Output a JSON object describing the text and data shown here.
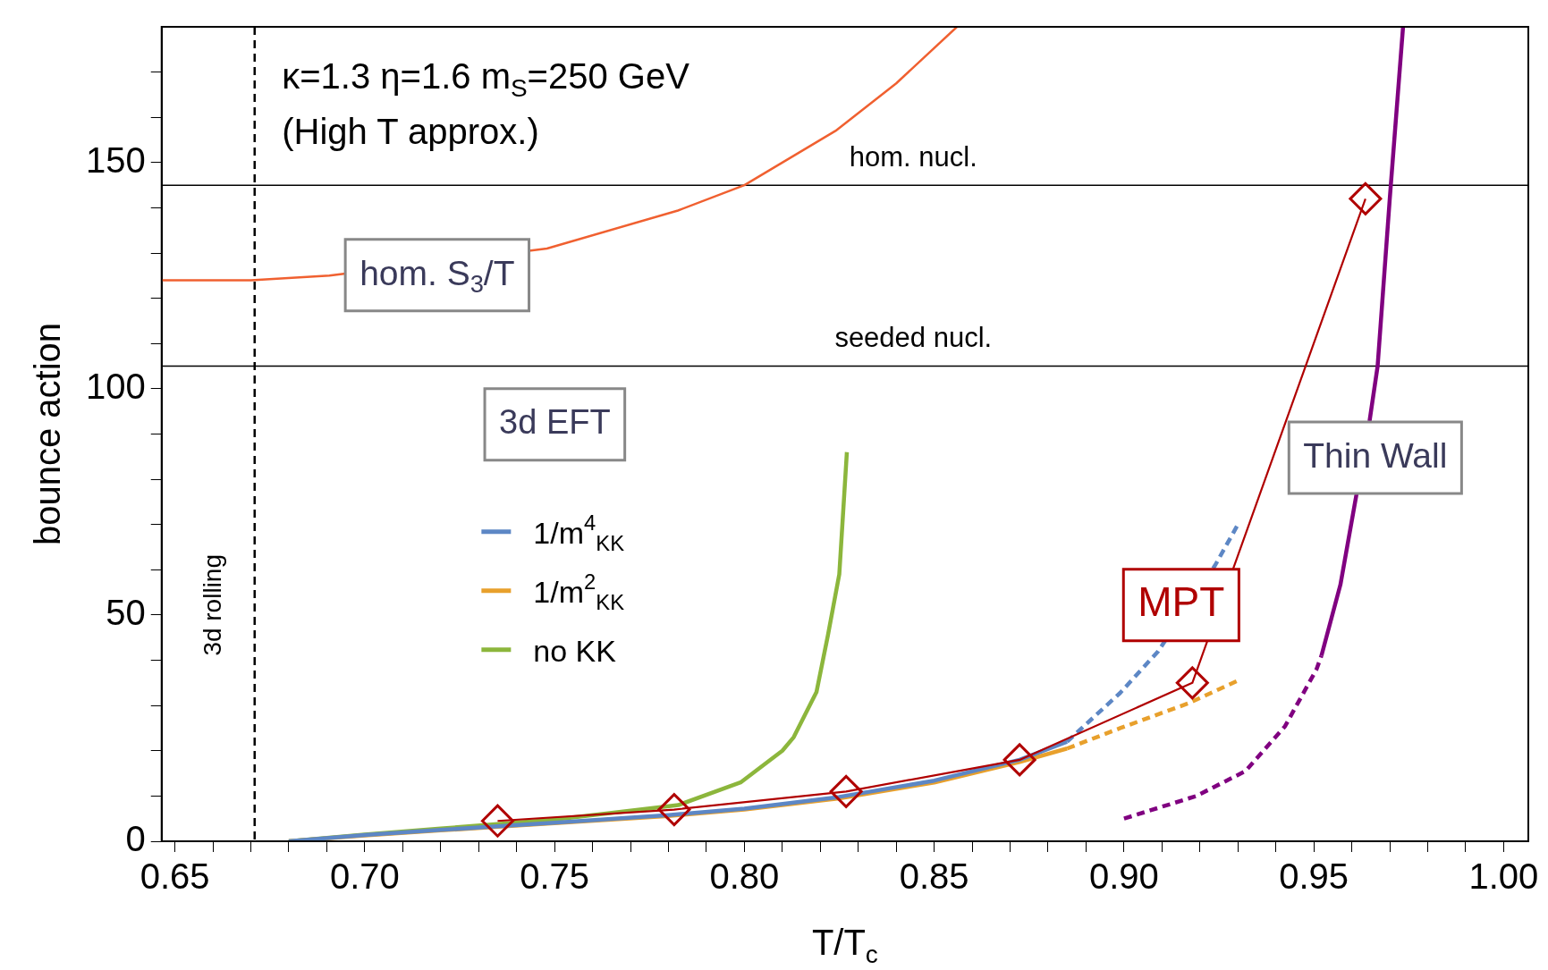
{
  "chart_data": {
    "type": "line",
    "xlabel": "T/T$_{c}$",
    "ylabel": "bounce action",
    "legend_title": "3d EFT",
    "legend": "left",
    "grid": false,
    "xlim": [
      0.6465,
      1.0065
    ],
    "ylim": [
      0,
      180
    ],
    "xticks": [
      {
        "value": 0.65,
        "label": "0.65"
      },
      {
        "value": 0.66,
        "label": null
      },
      {
        "value": 0.67,
        "label": null
      },
      {
        "value": 0.68,
        "label": null
      },
      {
        "value": 0.69,
        "label": null
      },
      {
        "value": 0.7,
        "label": "0.70"
      },
      {
        "value": 0.71,
        "label": null
      },
      {
        "value": 0.72,
        "label": null
      },
      {
        "value": 0.73,
        "label": null
      },
      {
        "value": 0.74,
        "label": null
      },
      {
        "value": 0.75,
        "label": "0.75"
      },
      {
        "value": 0.76,
        "label": null
      },
      {
        "value": 0.77,
        "label": null
      },
      {
        "value": 0.78,
        "label": null
      },
      {
        "value": 0.79,
        "label": null
      },
      {
        "value": 0.8,
        "label": "0.80"
      },
      {
        "value": 0.81,
        "label": null
      },
      {
        "value": 0.82,
        "label": null
      },
      {
        "value": 0.83,
        "label": null
      },
      {
        "value": 0.84,
        "label": null
      },
      {
        "value": 0.85,
        "label": "0.85"
      },
      {
        "value": 0.86,
        "label": null
      },
      {
        "value": 0.87,
        "label": null
      },
      {
        "value": 0.88,
        "label": null
      },
      {
        "value": 0.89,
        "label": null
      },
      {
        "value": 0.9,
        "label": "0.90"
      },
      {
        "value": 0.91,
        "label": null
      },
      {
        "value": 0.92,
        "label": null
      },
      {
        "value": 0.93,
        "label": null
      },
      {
        "value": 0.94,
        "label": null
      },
      {
        "value": 0.95,
        "label": "0.95"
      },
      {
        "value": 0.96,
        "label": null
      },
      {
        "value": 0.97,
        "label": null
      },
      {
        "value": 0.98,
        "label": null
      },
      {
        "value": 0.99,
        "label": null
      },
      {
        "value": 1.0,
        "label": "1.00"
      }
    ],
    "yticks": [
      0,
      {
        "value": 10,
        "label": null
      },
      {
        "value": 20,
        "label": null
      },
      {
        "value": 30,
        "label": null
      },
      {
        "value": 40,
        "label": null
      },
      50,
      {
        "value": 60,
        "label": null
      },
      {
        "value": 70,
        "label": null
      },
      {
        "value": 80,
        "label": null
      },
      {
        "value": 90,
        "label": null
      },
      100,
      {
        "value": 110,
        "label": null
      },
      {
        "value": 120,
        "label": null
      },
      {
        "value": 130,
        "label": null
      },
      {
        "value": 140,
        "label": null
      },
      150,
      {
        "value": 160,
        "label": null
      },
      {
        "value": 170,
        "label": null
      }
    ],
    "ref_lines": [
      {
        "axis": "y",
        "value": 145,
        "label": "hom. nucl.",
        "color": "#000000",
        "line_style": "solid"
      },
      {
        "axis": "y",
        "value": 105,
        "label": "seeded nucl.",
        "color": "#000000",
        "line_style": "solid"
      },
      {
        "axis": "x",
        "value": 0.671,
        "label": "3d rolling",
        "color": "#000000",
        "line_style": "dashed"
      }
    ],
    "annotations": [
      "κ=1.3 η=1.6 m$_{S}$=250 GeV",
      "(High T approx.)",
      "hom. S$_{3}$/T",
      "MPT",
      "Thin Wall"
    ],
    "series": [
      {
        "color": "#f06030",
        "line_style": "solid",
        "x": [
          0.6465,
          0.67,
          0.6907,
          0.748,
          0.7825,
          0.8,
          0.824,
          0.84,
          0.856
        ],
        "values": [
          124,
          124,
          125,
          131,
          139.4,
          145,
          157,
          167.5,
          180
        ]
      },
      {
        "name": "1/m$^{4}$$_{KK}$",
        "color": "#5d87c5",
        "line_style": "solid",
        "x": [
          0.68,
          0.7,
          0.72,
          0.735,
          0.75,
          0.78,
          0.8,
          0.825,
          0.85,
          0.8725,
          0.885
        ],
        "values": [
          0,
          1.4,
          2.5,
          3.3,
          4.1,
          5.8,
          7.2,
          9.8,
          13.4,
          18,
          22
        ]
      },
      {
        "color": "#5d87c5",
        "line_style": "dashed",
        "x": [
          0.885,
          0.899,
          0.909,
          0.924,
          0.93
        ],
        "values": [
          22,
          32.8,
          42,
          61,
          70
        ]
      },
      {
        "name": "1/m$^{2}$$_{KK}$",
        "color": "#e8a02c",
        "line_style": "solid",
        "x": [
          0.68,
          0.7,
          0.72,
          0.735,
          0.75,
          0.78,
          0.8,
          0.825,
          0.85,
          0.8725,
          0.885
        ],
        "values": [
          0,
          1.3,
          2.4,
          3.2,
          4,
          5.6,
          7,
          9.5,
          13,
          17.5,
          20.5
        ]
      },
      {
        "color": "#e8a02c",
        "line_style": "dashed",
        "x": [
          0.885,
          0.899,
          0.917,
          0.93
        ],
        "values": [
          20.5,
          25,
          30.5,
          35.5
        ]
      },
      {
        "name": "no KK",
        "color": "#8cb63c",
        "line_style": "solid",
        "x": [
          0.68,
          0.7,
          0.72,
          0.735,
          0.75,
          0.7826,
          0.799,
          0.81,
          0.813,
          0.819,
          0.822,
          0.825,
          0.827
        ],
        "values": [
          0,
          1.5,
          2.8,
          3.8,
          4.8,
          8,
          13,
          20,
          23,
          33,
          45.5,
          59,
          86
        ]
      },
      {
        "color": "#800080",
        "line_style": "dashed",
        "x": [
          0.9,
          0.919,
          0.932,
          0.9424,
          0.9507,
          0.952
        ],
        "values": [
          5,
          10,
          15.5,
          25.4,
          38,
          41
        ]
      },
      {
        "color": "#800080",
        "line_style": "solid",
        "x": [
          0.952,
          0.957,
          0.9647,
          0.9668,
          0.97,
          0.9735
        ],
        "values": [
          41,
          56.7,
          93,
          105,
          142,
          180
        ]
      },
      {
        "color": "#b00000",
        "line_style": "solid",
        "marker": "diamond",
        "x": [
          0.735,
          0.7815,
          0.8268,
          0.8725,
          0.918,
          0.9636
        ],
        "values": [
          4.5,
          7,
          11,
          18,
          35,
          142
        ]
      }
    ]
  }
}
